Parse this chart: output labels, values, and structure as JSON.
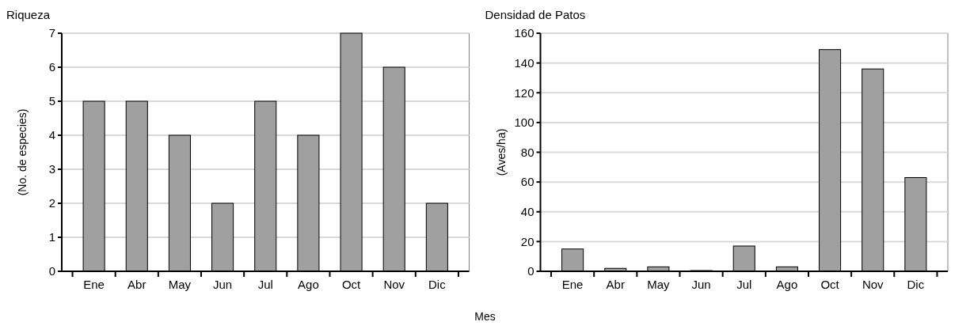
{
  "chart_data": [
    {
      "type": "bar",
      "title": "Riqueza",
      "ylabel": "(No. de especies)",
      "categories": [
        "Ene",
        "Abr",
        "May",
        "Jun",
        "Jul",
        "Ago",
        "Oct",
        "Nov",
        "Dic"
      ],
      "series": [
        {
          "color": "#a0a0a0",
          "values": [
            5,
            5,
            4,
            2,
            5,
            4,
            7,
            6,
            2
          ]
        }
      ],
      "ylim": [
        0,
        7
      ],
      "yticks": [
        0,
        1,
        2,
        3,
        4,
        5,
        6,
        7
      ],
      "grid": "y"
    },
    {
      "type": "bar",
      "title": "Densidad de Patos",
      "ylabel": "(Aves/ha)",
      "xlabel": "Mes",
      "categories": [
        "Ene",
        "Abr",
        "May",
        "Jun",
        "Jul",
        "Ago",
        "Oct",
        "Nov",
        "Dic"
      ],
      "series": [
        {
          "color": "#a0a0a0",
          "values": [
            15,
            2,
            3,
            0.5,
            17,
            3,
            149,
            136,
            63
          ]
        }
      ],
      "ylim": [
        0,
        160
      ],
      "yticks": [
        0,
        20,
        40,
        60,
        80,
        100,
        120,
        140,
        160
      ],
      "grid": "y"
    }
  ]
}
